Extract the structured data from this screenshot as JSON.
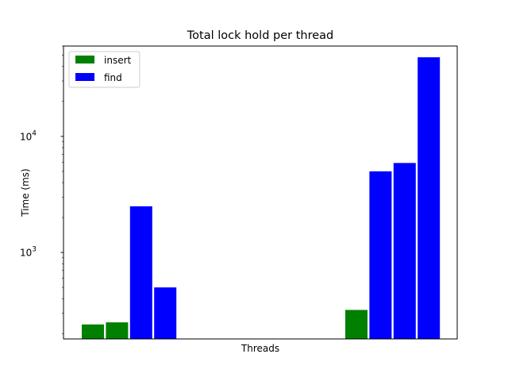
{
  "chart_data": {
    "type": "bar",
    "title": "Total lock hold per thread",
    "xlabel": "Threads",
    "ylabel": "Time (ms)",
    "yscale": "log",
    "ylim": [
      180,
      60000
    ],
    "yticks": [
      {
        "value": 1000,
        "base": "10",
        "exp": "3"
      },
      {
        "value": 10000,
        "base": "10",
        "exp": "4"
      }
    ],
    "grid": false,
    "legend_position": "upper-left",
    "legend": [
      {
        "name": "insert",
        "color": "#008000"
      },
      {
        "name": "find",
        "color": "#0000ff"
      }
    ],
    "bars": [
      {
        "series": "insert",
        "value": 240,
        "color": "#008000"
      },
      {
        "series": "insert",
        "value": 250,
        "color": "#008000"
      },
      {
        "series": "find",
        "value": 2500,
        "color": "#0000ff"
      },
      {
        "series": "find",
        "value": 500,
        "color": "#0000ff"
      },
      {
        "series": "insert",
        "value": 320,
        "color": "#008000"
      },
      {
        "series": "find",
        "value": 5000,
        "color": "#0000ff"
      },
      {
        "series": "find",
        "value": 5900,
        "color": "#0000ff"
      },
      {
        "series": "find",
        "value": 48000,
        "color": "#0000ff"
      }
    ]
  }
}
